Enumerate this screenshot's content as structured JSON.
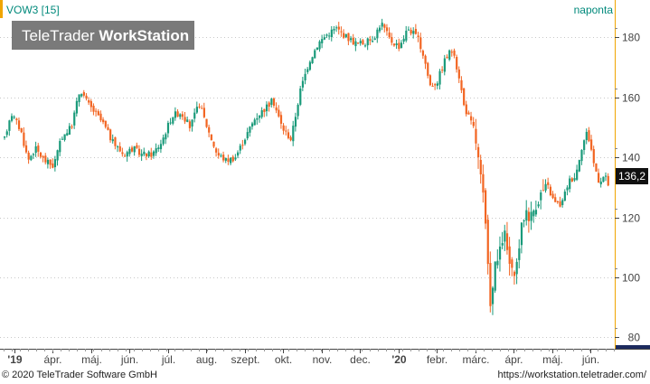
{
  "header": {
    "symbol": "VOW3 [15]",
    "interval": "naponta",
    "watermark_light": "TeleTrader ",
    "watermark_bold": "WorkStation"
  },
  "footer": {
    "copyright": "© 2020 TeleTrader Software GmbH",
    "url": "https://workstation.teletrader.com/"
  },
  "colors": {
    "up": "#1a9a7a",
    "down": "#f26522",
    "accent": "#f0a500",
    "watermark_bg": "#7a7a7a",
    "axis": "#444444",
    "label_teal": "#00897b"
  },
  "chart_data": {
    "type": "candlestick",
    "title": "VOW3 [15]",
    "period": "naponta",
    "last_value": "136,2",
    "ylim": [
      78,
      190
    ],
    "yticks": [
      80,
      100,
      120,
      140,
      160,
      180
    ],
    "x_labels": [
      "'19",
      "ápr.",
      "máj.",
      "jún.",
      "júl.",
      "aug.",
      "szept.",
      "okt.",
      "nov.",
      "dec.",
      "'20",
      "febr.",
      "márc.",
      "ápr.",
      "máj.",
      "jún."
    ],
    "x_bold": [
      "'19",
      "'20"
    ],
    "grid": "horizontal dotted",
    "path": [
      [
        0,
        146
      ],
      [
        7,
        155
      ],
      [
        18,
        149
      ],
      [
        26,
        139
      ],
      [
        34,
        143
      ],
      [
        44,
        139
      ],
      [
        54,
        137
      ],
      [
        64,
        147
      ],
      [
        74,
        150
      ],
      [
        84,
        163
      ],
      [
        92,
        158
      ],
      [
        100,
        155
      ],
      [
        110,
        151
      ],
      [
        120,
        145
      ],
      [
        132,
        141
      ],
      [
        142,
        143
      ],
      [
        152,
        141
      ],
      [
        164,
        141
      ],
      [
        174,
        145
      ],
      [
        186,
        154
      ],
      [
        196,
        155
      ],
      [
        206,
        150
      ],
      [
        216,
        158
      ],
      [
        226,
        149
      ],
      [
        236,
        141
      ],
      [
        246,
        139
      ],
      [
        256,
        140
      ],
      [
        266,
        146
      ],
      [
        278,
        153
      ],
      [
        288,
        156
      ],
      [
        298,
        159
      ],
      [
        308,
        150
      ],
      [
        318,
        146
      ],
      [
        328,
        162
      ],
      [
        338,
        172
      ],
      [
        348,
        178
      ],
      [
        358,
        181
      ],
      [
        368,
        183
      ],
      [
        380,
        180
      ],
      [
        390,
        178
      ],
      [
        400,
        178
      ],
      [
        410,
        180
      ],
      [
        418,
        185
      ],
      [
        428,
        179
      ],
      [
        438,
        177
      ],
      [
        448,
        183
      ],
      [
        458,
        180
      ],
      [
        466,
        173
      ],
      [
        472,
        164
      ],
      [
        480,
        165
      ],
      [
        488,
        172
      ],
      [
        496,
        176
      ],
      [
        504,
        168
      ],
      [
        510,
        157
      ],
      [
        516,
        153
      ],
      [
        522,
        148
      ],
      [
        528,
        134
      ],
      [
        533,
        122
      ],
      [
        536,
        104
      ],
      [
        540,
        90
      ],
      [
        544,
        103
      ],
      [
        550,
        108
      ],
      [
        554,
        116
      ],
      [
        560,
        105
      ],
      [
        566,
        98
      ],
      [
        572,
        113
      ],
      [
        578,
        123
      ],
      [
        584,
        120
      ],
      [
        590,
        125
      ],
      [
        596,
        128
      ],
      [
        602,
        131
      ],
      [
        610,
        125
      ],
      [
        618,
        124
      ],
      [
        626,
        132
      ],
      [
        634,
        134
      ],
      [
        640,
        143
      ],
      [
        646,
        148
      ],
      [
        650,
        145
      ],
      [
        654,
        138
      ],
      [
        660,
        132
      ],
      [
        666,
        134
      ],
      [
        670,
        131
      ]
    ]
  }
}
